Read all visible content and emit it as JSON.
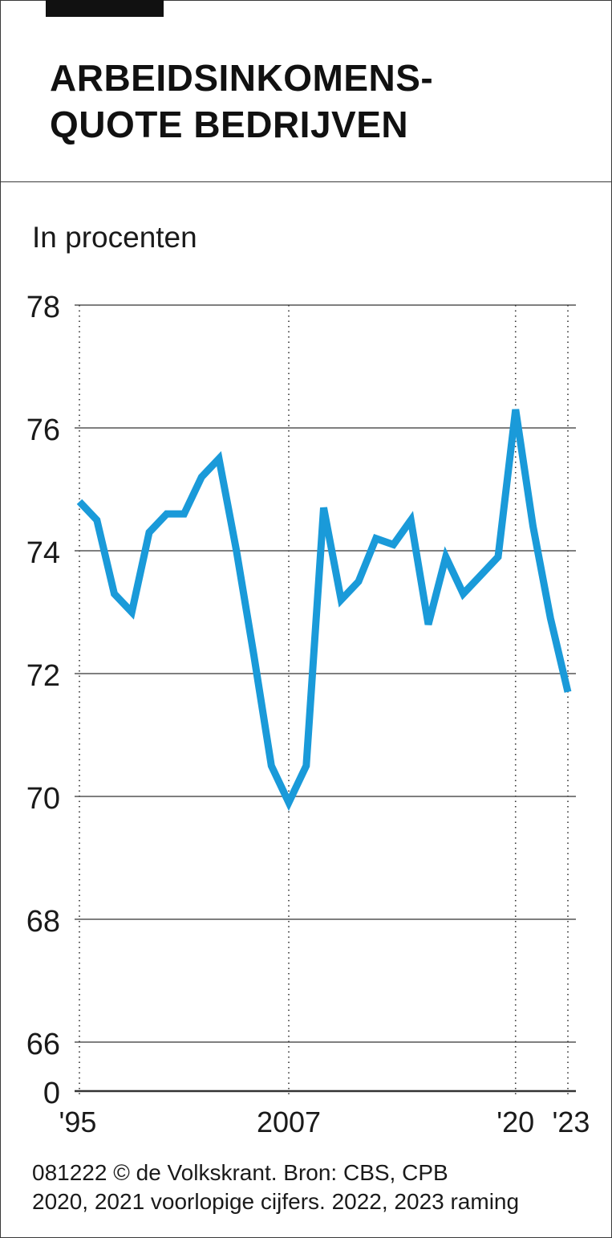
{
  "header": {
    "title_line1": "ARBEIDSINKOMENS-",
    "title_line2": "QUOTE BEDRIJVEN"
  },
  "unit_label": "In procenten",
  "footer": {
    "source": "081222 © de Volkskrant. Bron: CBS, CPB",
    "note": "2020, 2021 voorlopige cijfers. 2022, 2023 raming"
  },
  "colors": {
    "line": "#1a9ad9",
    "grid": "#333333",
    "text": "#1a1a1a"
  },
  "chart_data": {
    "type": "line",
    "title": "ARBEIDSINKOMENSQUOTE BEDRIJVEN",
    "ylabel": "In procenten",
    "xlabel": "",
    "ylim": [
      66,
      78
    ],
    "y_axis_break": true,
    "y_ticks": [
      {
        "value": 78,
        "label": "78"
      },
      {
        "value": 76,
        "label": "76"
      },
      {
        "value": 74,
        "label": "74"
      },
      {
        "value": 72,
        "label": "72"
      },
      {
        "value": 70,
        "label": "70"
      },
      {
        "value": 68,
        "label": "68"
      },
      {
        "value": 66,
        "label": "66"
      },
      {
        "value": 0,
        "label": "0"
      }
    ],
    "x_ticks": [
      {
        "value": 1995,
        "label": "'95"
      },
      {
        "value": 2007,
        "label": "2007"
      },
      {
        "value": 2020,
        "label": "'20"
      },
      {
        "value": 2023,
        "label": "'23"
      }
    ],
    "grid": true,
    "x": [
      1995,
      1996,
      1997,
      1998,
      1999,
      2000,
      2001,
      2002,
      2003,
      2004,
      2005,
      2006,
      2007,
      2008,
      2009,
      2010,
      2011,
      2012,
      2013,
      2014,
      2015,
      2016,
      2017,
      2018,
      2019,
      2020,
      2021,
      2022,
      2023
    ],
    "series": [
      {
        "values": [
          74.8,
          74.5,
          73.3,
          73.0,
          74.3,
          74.6,
          74.6,
          75.2,
          75.5,
          74.0,
          72.3,
          70.5,
          69.9,
          70.5,
          74.7,
          73.2,
          73.5,
          74.2,
          74.1,
          74.5,
          72.8,
          73.9,
          73.3,
          73.6,
          73.9,
          76.3,
          74.4,
          72.9,
          71.7
        ]
      }
    ]
  }
}
